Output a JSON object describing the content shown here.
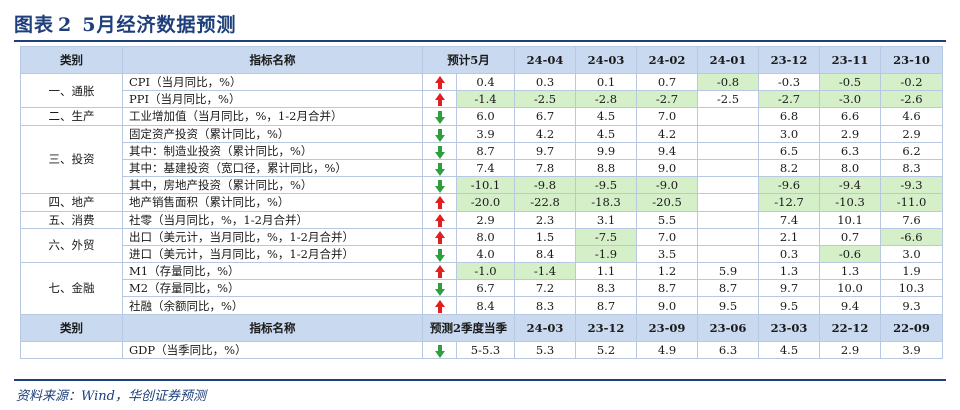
{
  "title": {
    "label": "图表",
    "number": "2",
    "text": "5月经济数据预测"
  },
  "header": {
    "category": "类别",
    "indicator": "指标名称",
    "forecast": "预计5月",
    "cols": [
      "24-04",
      "24-03",
      "24-02",
      "24-01",
      "23-12",
      "23-11",
      "23-10"
    ]
  },
  "rows": [
    {
      "cat": "一、通胀",
      "ind": "CPI（当月同比，%）",
      "dir": "up",
      "f": "0.4",
      "v": [
        "0.3",
        "0.1",
        "0.7",
        "-0.8",
        "-0.3",
        "-0.5",
        "-0.2"
      ]
    },
    {
      "ind": "PPI（当月同比，%）",
      "dir": "up",
      "f": "-1.4",
      "v": [
        "-2.5",
        "-2.8",
        "-2.7",
        "-2.5",
        "-2.7",
        "-3.0",
        "-2.6"
      ]
    },
    {
      "cat": "二、生产",
      "ind": "工业增加值（当月同比，%，1-2月合并）",
      "dir": "down",
      "f": "6.0",
      "v": [
        "6.7",
        "4.5",
        "7.0",
        "",
        "6.8",
        "6.6",
        "4.6"
      ]
    },
    {
      "cat": "三、投资",
      "ind": "固定资产投资（累计同比，%）",
      "dir": "down",
      "f": "3.9",
      "v": [
        "4.2",
        "4.5",
        "4.2",
        "",
        "3.0",
        "2.9",
        "2.9"
      ]
    },
    {
      "ind": "其中：制造业投资（累计同比，%）",
      "dir": "down",
      "f": "8.7",
      "v": [
        "9.7",
        "9.9",
        "9.4",
        "",
        "6.5",
        "6.3",
        "6.2"
      ]
    },
    {
      "ind": "其中：基建投资（宽口径，累计同比，%）",
      "dir": "down",
      "f": "7.4",
      "v": [
        "7.8",
        "8.8",
        "9.0",
        "",
        "8.2",
        "8.0",
        "8.3"
      ]
    },
    {
      "ind": "其中，房地产投资（累计同比，%）",
      "dir": "down",
      "f": "-10.1",
      "v": [
        "-9.8",
        "-9.5",
        "-9.0",
        "",
        "-9.6",
        "-9.4",
        "-9.3"
      ]
    },
    {
      "cat": "四、地产",
      "ind": "地产销售面积（累计同比，%）",
      "dir": "up",
      "f": "-20.0",
      "v": [
        "-22.8",
        "-18.3",
        "-20.5",
        "",
        "-12.7",
        "-10.3",
        "-11.0"
      ]
    },
    {
      "cat": "五、消费",
      "ind": "社零（当月同比，%，1-2月合并）",
      "dir": "up",
      "f": "2.9",
      "v": [
        "2.3",
        "3.1",
        "5.5",
        "",
        "7.4",
        "10.1",
        "7.6"
      ]
    },
    {
      "cat": "六、外贸",
      "ind": "出口（美元计，当月同比，%，1-2月合并）",
      "dir": "up",
      "f": "8.0",
      "v": [
        "1.5",
        "-7.5",
        "7.0",
        "",
        "2.1",
        "0.7",
        "-6.6"
      ]
    },
    {
      "ind": "进口（美元计，当月同比，%，1-2月合并）",
      "dir": "down",
      "f": "4.0",
      "v": [
        "8.4",
        "-1.9",
        "3.5",
        "",
        "0.3",
        "-0.6",
        "3.0"
      ]
    },
    {
      "cat": "七、金融",
      "ind": "M1（存量同比，%）",
      "dir": "up",
      "f": "-1.0",
      "v": [
        "-1.4",
        "1.1",
        "1.2",
        "5.9",
        "1.3",
        "1.3",
        "1.9"
      ]
    },
    {
      "ind": "M2（存量同比，%）",
      "dir": "down",
      "f": "6.7",
      "v": [
        "7.2",
        "8.3",
        "8.7",
        "8.7",
        "9.7",
        "10.0",
        "10.3"
      ]
    },
    {
      "ind": "社融（余额同比，%）",
      "dir": "up",
      "f": "8.4",
      "v": [
        "8.3",
        "8.7",
        "9.0",
        "9.5",
        "9.5",
        "9.4",
        "9.3"
      ]
    }
  ],
  "header2": {
    "category": "类别",
    "indicator": "指标名称",
    "forecast": "预测2季度当季",
    "cols": [
      "24-03",
      "23-12",
      "23-09",
      "23-06",
      "23-03",
      "22-12",
      "22-09"
    ]
  },
  "gdp": {
    "ind": "GDP（当季同比，%）",
    "dir": "down",
    "f": "5-5.3",
    "v": [
      "5.3",
      "5.2",
      "4.9",
      "6.3",
      "4.5",
      "2.9",
      "3.9"
    ]
  },
  "source": "资料来源：Wind，华创证券预测",
  "colors": {
    "title": "#1f3f7a",
    "header_bg": "#c9d9ef",
    "highlight": "#d5efc8",
    "arrow_up": "#e02020",
    "arrow_down": "#2e9e3e"
  }
}
